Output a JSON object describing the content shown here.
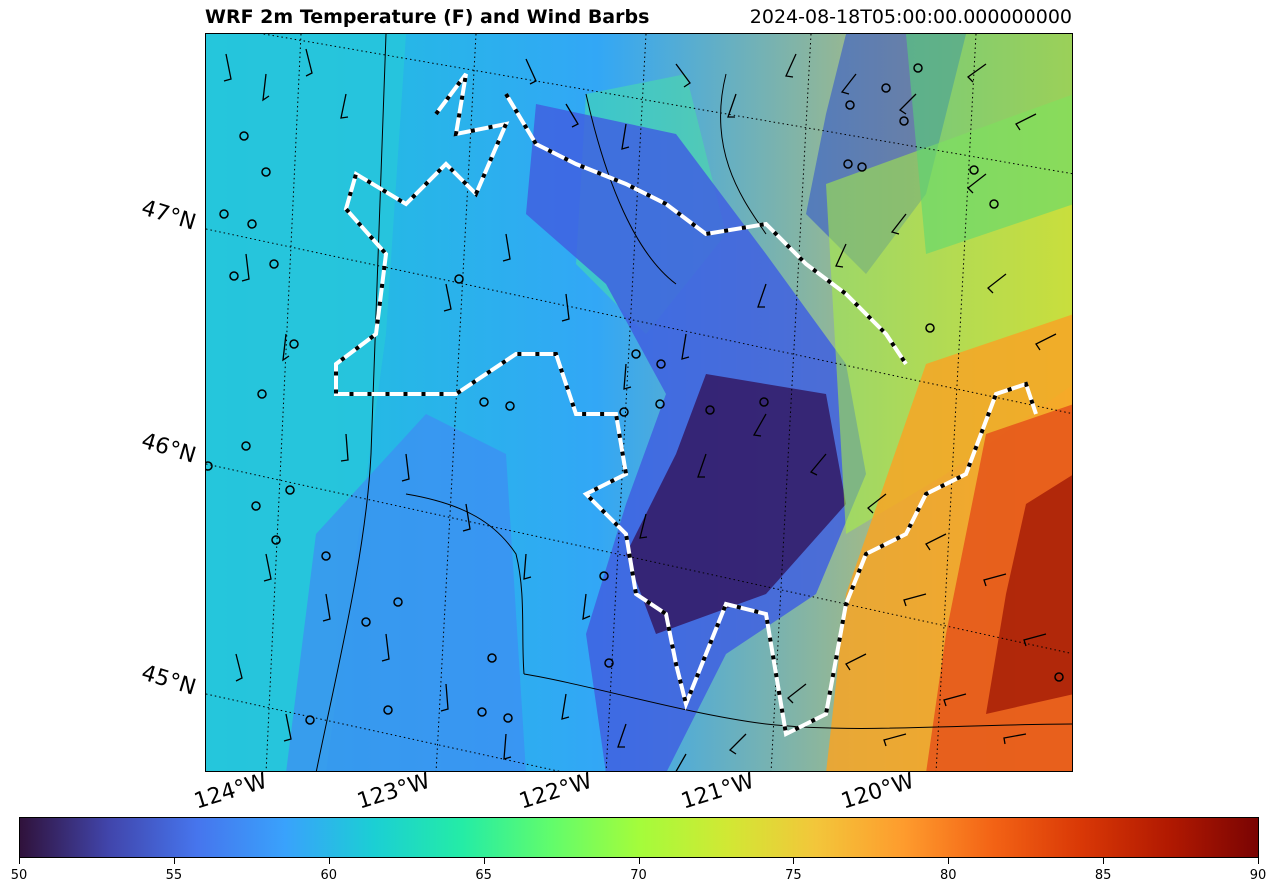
{
  "title": {
    "main": "WRF 2m Temperature (F) and Wind Barbs",
    "timestamp": "2024-08-18T05:00:00.000000000"
  },
  "map": {
    "variable": "2m Temperature (F)",
    "overlays": [
      "wind barbs",
      "state boundaries",
      "county lines",
      "white/black dashed contour"
    ],
    "lat_labels": [
      "47°N",
      "46°N",
      "45°N"
    ],
    "lon_labels": [
      "124°W",
      "123°W",
      "122°W",
      "121°W",
      "120°W"
    ],
    "colors": {
      "cold": "#30123b",
      "cool": "#4686fb",
      "mild": "#1bd0d5",
      "warm": "#a2fc3c",
      "hot": "#fb8022",
      "hottest": "#7a0403"
    }
  },
  "colorbar": {
    "min": 50,
    "max": 90,
    "tick_labels": [
      "50",
      "55",
      "60",
      "65",
      "70",
      "75",
      "80",
      "85",
      "90"
    ],
    "colormap": "turbo"
  }
}
